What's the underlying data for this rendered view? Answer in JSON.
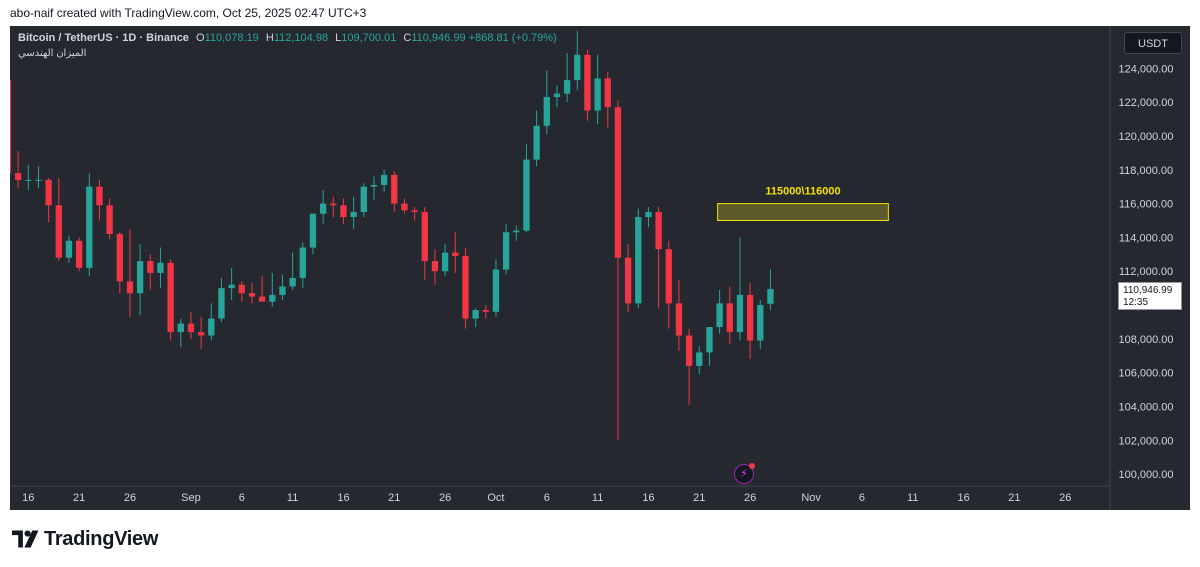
{
  "header": {
    "attribution": "abo-naif created with TradingView.com, Oct 25, 2025 02:47 UTC+3"
  },
  "legend": {
    "symbol": "Bitcoin / TetherUS · 1D · Binance",
    "o_label": "O",
    "o_value": "110,078.19",
    "h_label": "H",
    "h_value": "112,104.98",
    "l_label": "L",
    "l_value": "109,700.01",
    "c_label": "C",
    "c_value": "110,946.99",
    "change": "+868.81 (+0.79%)",
    "indicator": "الميزان الهندسي"
  },
  "toolbar": {
    "currency": "USDT"
  },
  "price_tag": {
    "price": "110,946.99",
    "countdown": "12:35"
  },
  "footer": {
    "brand": "TradingView"
  },
  "colors": {
    "up": "#26a69a",
    "down": "#f23645",
    "zone_fill": "#c9b81f",
    "zone_text": "#f5e000",
    "background": "#262830"
  },
  "chart_data": {
    "type": "candlestick",
    "series_label": "Bitcoin / TetherUS · 1D · Binance",
    "yticks": [
      "124,000.00",
      "122,000.00",
      "120,000.00",
      "118,000.00",
      "116,000.00",
      "114,000.00",
      "112,000.00",
      "110,000.00",
      "108,000.00",
      "106,000.00",
      "104,000.00",
      "102,000.00",
      "100,000.00"
    ],
    "ytick_values": [
      124000,
      122000,
      120000,
      118000,
      116000,
      114000,
      112000,
      110000,
      108000,
      106000,
      104000,
      102000,
      100000
    ],
    "ylim": [
      99300,
      126500
    ],
    "xticks": [
      {
        "label": "16",
        "day": 0
      },
      {
        "label": "21",
        "day": 5
      },
      {
        "label": "26",
        "day": 10
      },
      {
        "label": "Sep",
        "day": 16
      },
      {
        "label": "6",
        "day": 21
      },
      {
        "label": "11",
        "day": 26
      },
      {
        "label": "16",
        "day": 31
      },
      {
        "label": "21",
        "day": 36
      },
      {
        "label": "26",
        "day": 41
      },
      {
        "label": "Oct",
        "day": 46
      },
      {
        "label": "6",
        "day": 51
      },
      {
        "label": "11",
        "day": 56
      },
      {
        "label": "16",
        "day": 61
      },
      {
        "label": "21",
        "day": 66
      },
      {
        "label": "26",
        "day": 71
      },
      {
        "label": "Nov",
        "day": 77
      },
      {
        "label": "6",
        "day": 82
      },
      {
        "label": "11",
        "day": 87
      },
      {
        "label": "16",
        "day": 92
      },
      {
        "label": "21",
        "day": 97
      },
      {
        "label": "26",
        "day": 102
      }
    ],
    "xlim_days": [
      -1.8,
      106.4
    ],
    "candles": [
      {
        "day": -2,
        "o": 123300,
        "h": 124200,
        "l": 117400,
        "c": 117800
      },
      {
        "day": -1,
        "o": 117800,
        "h": 119100,
        "l": 116900,
        "c": 117400
      },
      {
        "day": 0,
        "o": 117400,
        "h": 118300,
        "l": 116800,
        "c": 117400
      },
      {
        "day": 1,
        "o": 117400,
        "h": 118200,
        "l": 116900,
        "c": 117400
      },
      {
        "day": 2,
        "o": 117400,
        "h": 117500,
        "l": 114900,
        "c": 115900
      },
      {
        "day": 3,
        "o": 115900,
        "h": 117500,
        "l": 112600,
        "c": 112800
      },
      {
        "day": 4,
        "o": 112800,
        "h": 114100,
        "l": 112500,
        "c": 113800
      },
      {
        "day": 5,
        "o": 113800,
        "h": 114000,
        "l": 112000,
        "c": 112200
      },
      {
        "day": 6,
        "o": 112200,
        "h": 117800,
        "l": 111700,
        "c": 117000
      },
      {
        "day": 7,
        "o": 117000,
        "h": 117400,
        "l": 115000,
        "c": 115900
      },
      {
        "day": 8,
        "o": 115900,
        "h": 116300,
        "l": 113900,
        "c": 114200
      },
      {
        "day": 9,
        "o": 114200,
        "h": 114300,
        "l": 110700,
        "c": 111400
      },
      {
        "day": 10,
        "o": 111400,
        "h": 114500,
        "l": 109300,
        "c": 110700
      },
      {
        "day": 11,
        "o": 110700,
        "h": 113600,
        "l": 109400,
        "c": 112600
      },
      {
        "day": 12,
        "o": 112600,
        "h": 113000,
        "l": 110900,
        "c": 111900
      },
      {
        "day": 13,
        "o": 111900,
        "h": 113400,
        "l": 111000,
        "c": 112500
      },
      {
        "day": 14,
        "o": 112500,
        "h": 112700,
        "l": 107900,
        "c": 108400
      },
      {
        "day": 15,
        "o": 108400,
        "h": 109200,
        "l": 107500,
        "c": 108900
      },
      {
        "day": 16,
        "o": 108900,
        "h": 109600,
        "l": 108000,
        "c": 108400
      },
      {
        "day": 17,
        "o": 108400,
        "h": 109300,
        "l": 107400,
        "c": 108200
      },
      {
        "day": 18,
        "o": 108200,
        "h": 110100,
        "l": 107900,
        "c": 109200
      },
      {
        "day": 19,
        "o": 109200,
        "h": 111600,
        "l": 109000,
        "c": 111000
      },
      {
        "day": 20,
        "o": 111000,
        "h": 112200,
        "l": 110300,
        "c": 111200
      },
      {
        "day": 21,
        "o": 111200,
        "h": 111400,
        "l": 110200,
        "c": 110700
      },
      {
        "day": 22,
        "o": 110700,
        "h": 111300,
        "l": 110100,
        "c": 110500
      },
      {
        "day": 23,
        "o": 110500,
        "h": 111700,
        "l": 110200,
        "c": 110200
      },
      {
        "day": 24,
        "o": 110200,
        "h": 111900,
        "l": 109900,
        "c": 110600
      },
      {
        "day": 25,
        "o": 110600,
        "h": 111800,
        "l": 110300,
        "c": 111100
      },
      {
        "day": 26,
        "o": 111100,
        "h": 113100,
        "l": 110900,
        "c": 111600
      },
      {
        "day": 27,
        "o": 111600,
        "h": 113700,
        "l": 111000,
        "c": 113400
      },
      {
        "day": 28,
        "o": 113400,
        "h": 115400,
        "l": 113000,
        "c": 115400
      },
      {
        "day": 29,
        "o": 115400,
        "h": 116800,
        "l": 114800,
        "c": 116000
      },
      {
        "day": 30,
        "o": 116000,
        "h": 116400,
        "l": 115200,
        "c": 115900
      },
      {
        "day": 31,
        "o": 115900,
        "h": 116300,
        "l": 114800,
        "c": 115200
      },
      {
        "day": 32,
        "o": 115200,
        "h": 116400,
        "l": 114500,
        "c": 115500
      },
      {
        "day": 33,
        "o": 115500,
        "h": 117200,
        "l": 115200,
        "c": 117000
      },
      {
        "day": 34,
        "o": 117000,
        "h": 117600,
        "l": 116200,
        "c": 117100
      },
      {
        "day": 35,
        "o": 117100,
        "h": 118000,
        "l": 116700,
        "c": 117700
      },
      {
        "day": 36,
        "o": 117700,
        "h": 117900,
        "l": 115500,
        "c": 116000
      },
      {
        "day": 37,
        "o": 116000,
        "h": 116300,
        "l": 115400,
        "c": 115600
      },
      {
        "day": 38,
        "o": 115600,
        "h": 115800,
        "l": 115000,
        "c": 115500
      },
      {
        "day": 39,
        "o": 115500,
        "h": 115800,
        "l": 111500,
        "c": 112600
      },
      {
        "day": 40,
        "o": 112600,
        "h": 113300,
        "l": 111200,
        "c": 112000
      },
      {
        "day": 41,
        "o": 112000,
        "h": 113600,
        "l": 111700,
        "c": 113100
      },
      {
        "day": 42,
        "o": 113100,
        "h": 114300,
        "l": 111900,
        "c": 112900
      },
      {
        "day": 43,
        "o": 112900,
        "h": 113400,
        "l": 108600,
        "c": 109200
      },
      {
        "day": 44,
        "o": 109200,
        "h": 109800,
        "l": 108700,
        "c": 109700
      },
      {
        "day": 45,
        "o": 109700,
        "h": 110000,
        "l": 109200,
        "c": 109600
      },
      {
        "day": 46,
        "o": 109600,
        "h": 112700,
        "l": 109300,
        "c": 112100
      },
      {
        "day": 47,
        "o": 112100,
        "h": 114800,
        "l": 111800,
        "c": 114300
      },
      {
        "day": 48,
        "o": 114300,
        "h": 114700,
        "l": 113800,
        "c": 114400
      },
      {
        "day": 49,
        "o": 114400,
        "h": 119500,
        "l": 114300,
        "c": 118600
      },
      {
        "day": 50,
        "o": 118600,
        "h": 121500,
        "l": 118200,
        "c": 120600
      },
      {
        "day": 51,
        "o": 120600,
        "h": 123900,
        "l": 120100,
        "c": 122300
      },
      {
        "day": 52,
        "o": 122300,
        "h": 123000,
        "l": 121700,
        "c": 122500
      },
      {
        "day": 53,
        "o": 122500,
        "h": 124900,
        "l": 122000,
        "c": 123300
      },
      {
        "day": 54,
        "o": 123300,
        "h": 126200,
        "l": 122700,
        "c": 124800
      },
      {
        "day": 55,
        "o": 124800,
        "h": 125100,
        "l": 120900,
        "c": 121500
      },
      {
        "day": 56,
        "o": 121500,
        "h": 124800,
        "l": 120700,
        "c": 123400
      },
      {
        "day": 57,
        "o": 123400,
        "h": 123800,
        "l": 120500,
        "c": 121700
      },
      {
        "day": 58,
        "o": 121700,
        "h": 122100,
        "l": 102000,
        "c": 112800
      },
      {
        "day": 59,
        "o": 112800,
        "h": 113600,
        "l": 109600,
        "c": 110100
      },
      {
        "day": 60,
        "o": 110100,
        "h": 115700,
        "l": 109800,
        "c": 115200
      },
      {
        "day": 61,
        "o": 115200,
        "h": 115800,
        "l": 114600,
        "c": 115500
      },
      {
        "day": 62,
        "o": 115500,
        "h": 115800,
        "l": 109800,
        "c": 113300
      },
      {
        "day": 63,
        "o": 113300,
        "h": 113800,
        "l": 108600,
        "c": 110100
      },
      {
        "day": 64,
        "o": 110100,
        "h": 111500,
        "l": 107300,
        "c": 108200
      },
      {
        "day": 65,
        "o": 108200,
        "h": 108600,
        "l": 104100,
        "c": 106400
      },
      {
        "day": 66,
        "o": 106400,
        "h": 107600,
        "l": 105900,
        "c": 107200
      },
      {
        "day": 67,
        "o": 107200,
        "h": 108500,
        "l": 106400,
        "c": 108700
      },
      {
        "day": 68,
        "o": 108700,
        "h": 110900,
        "l": 108300,
        "c": 110100
      },
      {
        "day": 69,
        "o": 110100,
        "h": 111100,
        "l": 107700,
        "c": 108400
      },
      {
        "day": 70,
        "o": 108400,
        "h": 114000,
        "l": 107900,
        "c": 110600
      },
      {
        "day": 71,
        "o": 110600,
        "h": 111300,
        "l": 106800,
        "c": 107900
      },
      {
        "day": 72,
        "o": 107900,
        "h": 110300,
        "l": 107400,
        "c": 110000
      },
      {
        "day": 73,
        "o": 110078.19,
        "h": 112104.98,
        "l": 109700.01,
        "c": 110946.99
      }
    ],
    "zone": {
      "label": "115000\\116000",
      "low": 115000,
      "high": 116000,
      "day_start": 67.8,
      "day_end": 84.6
    }
  }
}
